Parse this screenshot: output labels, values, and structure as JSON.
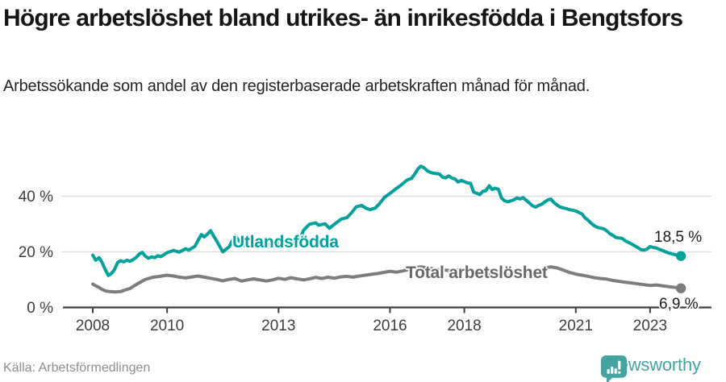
{
  "chart_data": {
    "type": "line",
    "title": "Högre arbetslöshet bland utrikes- än inrikesfödda i Bengtsfors",
    "subtitle": "Arbetssökande som andel av den registerbaserade arbetskraften månad för månad.",
    "source": "Källa: Arbetsförmedlingen",
    "x_tick_values": [
      2008,
      2010,
      2013,
      2016,
      2018,
      2021,
      2023
    ],
    "x_tick_labels": [
      "2008",
      "2010",
      "2013",
      "2016",
      "2018",
      "2021",
      "2023"
    ],
    "y_tick_values": [
      0,
      20,
      40
    ],
    "y_tick_labels": [
      "0 %",
      "20 %",
      "40 %"
    ],
    "xlim": [
      2008,
      2023.92
    ],
    "ylim": [
      0,
      55
    ],
    "grid": "horizontal",
    "legend": "inline-labels",
    "series": [
      {
        "name": "Utlandsfödda",
        "color": "#00a29b",
        "end_label": "18,5 %",
        "last_value": 18.5,
        "points": [
          [
            2008.0,
            18.8
          ],
          [
            2008.08,
            17.0
          ],
          [
            2008.17,
            17.9
          ],
          [
            2008.25,
            16.2
          ],
          [
            2008.33,
            13.8
          ],
          [
            2008.42,
            11.5
          ],
          [
            2008.5,
            12.2
          ],
          [
            2008.58,
            13.5
          ],
          [
            2008.67,
            16.2
          ],
          [
            2008.75,
            16.8
          ],
          [
            2008.83,
            16.4
          ],
          [
            2008.92,
            17.0
          ],
          [
            2009.0,
            16.6
          ],
          [
            2009.08,
            17.2
          ],
          [
            2009.17,
            18.0
          ],
          [
            2009.25,
            19.2
          ],
          [
            2009.33,
            19.8
          ],
          [
            2009.42,
            18.4
          ],
          [
            2009.5,
            17.7
          ],
          [
            2009.58,
            18.2
          ],
          [
            2009.67,
            17.9
          ],
          [
            2009.75,
            18.6
          ],
          [
            2009.83,
            18.3
          ],
          [
            2009.92,
            19.0
          ],
          [
            2010.0,
            19.7
          ],
          [
            2010.17,
            20.5
          ],
          [
            2010.33,
            19.9
          ],
          [
            2010.5,
            21.1
          ],
          [
            2010.58,
            20.6
          ],
          [
            2010.75,
            22.0
          ],
          [
            2010.83,
            24.0
          ],
          [
            2010.92,
            26.2
          ],
          [
            2011.0,
            25.4
          ],
          [
            2011.08,
            26.3
          ],
          [
            2011.17,
            27.6
          ],
          [
            2011.33,
            24.0
          ],
          [
            2011.5,
            20.0
          ],
          [
            2011.67,
            21.8
          ],
          [
            2011.83,
            25.9
          ],
          [
            2011.92,
            24.2
          ],
          [
            2012.08,
            22.3
          ],
          [
            2012.25,
            22.9
          ],
          [
            2012.42,
            22.3
          ],
          [
            2012.58,
            23.3
          ],
          [
            2012.75,
            22.6
          ],
          [
            2012.92,
            23.2
          ],
          [
            2013.08,
            22.7
          ],
          [
            2013.25,
            23.3
          ],
          [
            2013.42,
            23.8
          ],
          [
            2013.58,
            24.6
          ],
          [
            2013.67,
            27.7
          ],
          [
            2013.83,
            29.9
          ],
          [
            2014.0,
            30.4
          ],
          [
            2014.08,
            29.6
          ],
          [
            2014.25,
            30.1
          ],
          [
            2014.37,
            28.5
          ],
          [
            2014.55,
            30.4
          ],
          [
            2014.69,
            31.8
          ],
          [
            2014.84,
            32.3
          ],
          [
            2014.98,
            34.3
          ],
          [
            2015.09,
            36.2
          ],
          [
            2015.24,
            36.7
          ],
          [
            2015.35,
            35.7
          ],
          [
            2015.46,
            35.2
          ],
          [
            2015.6,
            35.7
          ],
          [
            2015.71,
            37.2
          ],
          [
            2015.85,
            39.6
          ],
          [
            2016.0,
            41.0
          ],
          [
            2016.14,
            42.5
          ],
          [
            2016.29,
            43.9
          ],
          [
            2016.47,
            45.9
          ],
          [
            2016.58,
            46.4
          ],
          [
            2016.67,
            48.1
          ],
          [
            2016.75,
            49.8
          ],
          [
            2016.83,
            50.8
          ],
          [
            2016.92,
            50.2
          ],
          [
            2017.0,
            49.2
          ],
          [
            2017.08,
            48.6
          ],
          [
            2017.17,
            48.3
          ],
          [
            2017.33,
            48.0
          ],
          [
            2017.42,
            46.8
          ],
          [
            2017.5,
            46.6
          ],
          [
            2017.58,
            47.3
          ],
          [
            2017.67,
            46.5
          ],
          [
            2017.75,
            46.2
          ],
          [
            2017.83,
            45.1
          ],
          [
            2017.92,
            45.7
          ],
          [
            2018.08,
            44.8
          ],
          [
            2018.17,
            44.6
          ],
          [
            2018.25,
            41.5
          ],
          [
            2018.42,
            40.6
          ],
          [
            2018.5,
            41.8
          ],
          [
            2018.58,
            42.0
          ],
          [
            2018.67,
            43.8
          ],
          [
            2018.75,
            42.4
          ],
          [
            2018.83,
            42.9
          ],
          [
            2018.92,
            42.5
          ],
          [
            2019.0,
            39.4
          ],
          [
            2019.08,
            38.4
          ],
          [
            2019.17,
            38.0
          ],
          [
            2019.33,
            38.7
          ],
          [
            2019.42,
            39.4
          ],
          [
            2019.5,
            39.0
          ],
          [
            2019.58,
            39.5
          ],
          [
            2019.75,
            37.6
          ],
          [
            2019.83,
            36.6
          ],
          [
            2019.92,
            36.1
          ],
          [
            2020.0,
            36.7
          ],
          [
            2020.08,
            37.1
          ],
          [
            2020.17,
            38.0
          ],
          [
            2020.25,
            38.7
          ],
          [
            2020.33,
            39.0
          ],
          [
            2020.42,
            37.6
          ],
          [
            2020.5,
            36.8
          ],
          [
            2020.58,
            36.1
          ],
          [
            2020.67,
            35.8
          ],
          [
            2020.75,
            35.5
          ],
          [
            2020.83,
            35.2
          ],
          [
            2020.92,
            35.0
          ],
          [
            2021.0,
            34.7
          ],
          [
            2021.08,
            34.2
          ],
          [
            2021.17,
            33.6
          ],
          [
            2021.25,
            32.2
          ],
          [
            2021.33,
            31.4
          ],
          [
            2021.42,
            30.2
          ],
          [
            2021.5,
            29.4
          ],
          [
            2021.58,
            28.8
          ],
          [
            2021.75,
            28.3
          ],
          [
            2021.83,
            27.6
          ],
          [
            2021.92,
            26.5
          ],
          [
            2022.0,
            25.9
          ],
          [
            2022.08,
            25.2
          ],
          [
            2022.17,
            25.0
          ],
          [
            2022.25,
            24.8
          ],
          [
            2022.33,
            24.0
          ],
          [
            2022.42,
            23.4
          ],
          [
            2022.5,
            22.8
          ],
          [
            2022.58,
            22.2
          ],
          [
            2022.67,
            21.5
          ],
          [
            2022.75,
            20.8
          ],
          [
            2022.83,
            20.6
          ],
          [
            2022.92,
            21.0
          ],
          [
            2023.0,
            21.9
          ],
          [
            2023.08,
            21.6
          ],
          [
            2023.17,
            21.4
          ],
          [
            2023.25,
            20.9
          ],
          [
            2023.33,
            20.5
          ],
          [
            2023.42,
            20.0
          ],
          [
            2023.5,
            19.6
          ],
          [
            2023.58,
            19.3
          ],
          [
            2023.67,
            19.0
          ],
          [
            2023.75,
            18.7
          ],
          [
            2023.83,
            18.5
          ]
        ]
      },
      {
        "name": "Total arbetslöshet",
        "color": "#7d7d7d",
        "end_label": "6,9 %",
        "last_value": 6.9,
        "points": [
          [
            2008.0,
            8.4
          ],
          [
            2008.08,
            7.8
          ],
          [
            2008.17,
            7.2
          ],
          [
            2008.25,
            6.5
          ],
          [
            2008.33,
            6.0
          ],
          [
            2008.45,
            5.7
          ],
          [
            2008.6,
            5.6
          ],
          [
            2008.75,
            5.7
          ],
          [
            2008.9,
            6.4
          ],
          [
            2009.0,
            6.8
          ],
          [
            2009.2,
            8.5
          ],
          [
            2009.4,
            10.0
          ],
          [
            2009.6,
            10.8
          ],
          [
            2009.8,
            11.2
          ],
          [
            2010.0,
            11.6
          ],
          [
            2010.17,
            11.3
          ],
          [
            2010.33,
            10.9
          ],
          [
            2010.5,
            10.6
          ],
          [
            2010.67,
            11.0
          ],
          [
            2010.83,
            11.3
          ],
          [
            2011.0,
            10.9
          ],
          [
            2011.17,
            10.5
          ],
          [
            2011.33,
            10.1
          ],
          [
            2011.5,
            9.6
          ],
          [
            2011.67,
            10.1
          ],
          [
            2011.83,
            10.4
          ],
          [
            2012.0,
            9.5
          ],
          [
            2012.17,
            9.9
          ],
          [
            2012.33,
            10.3
          ],
          [
            2012.5,
            9.9
          ],
          [
            2012.67,
            9.5
          ],
          [
            2012.83,
            9.9
          ],
          [
            2013.0,
            10.5
          ],
          [
            2013.17,
            10.1
          ],
          [
            2013.33,
            10.7
          ],
          [
            2013.5,
            10.3
          ],
          [
            2013.67,
            9.9
          ],
          [
            2013.83,
            10.3
          ],
          [
            2014.0,
            10.8
          ],
          [
            2014.17,
            10.4
          ],
          [
            2014.33,
            10.9
          ],
          [
            2014.5,
            10.5
          ],
          [
            2014.67,
            11.0
          ],
          [
            2014.83,
            11.2
          ],
          [
            2015.0,
            10.9
          ],
          [
            2015.17,
            11.3
          ],
          [
            2015.33,
            11.6
          ],
          [
            2015.5,
            11.9
          ],
          [
            2015.67,
            12.2
          ],
          [
            2015.83,
            12.6
          ],
          [
            2016.0,
            13.0
          ],
          [
            2016.17,
            12.7
          ],
          [
            2016.33,
            13.1
          ],
          [
            2016.5,
            13.6
          ],
          [
            2016.67,
            14.3
          ],
          [
            2016.83,
            14.6
          ],
          [
            2017.0,
            14.2
          ],
          [
            2017.17,
            13.9
          ],
          [
            2017.33,
            13.6
          ],
          [
            2017.5,
            13.4
          ],
          [
            2017.67,
            13.2
          ],
          [
            2017.83,
            13.5
          ],
          [
            2018.0,
            13.2
          ],
          [
            2018.17,
            12.9
          ],
          [
            2018.33,
            12.6
          ],
          [
            2018.5,
            12.4
          ],
          [
            2018.67,
            12.2
          ],
          [
            2018.83,
            12.0
          ],
          [
            2019.0,
            11.8
          ],
          [
            2019.17,
            11.6
          ],
          [
            2019.33,
            11.4
          ],
          [
            2019.5,
            11.6
          ],
          [
            2019.67,
            11.9
          ],
          [
            2019.83,
            12.4
          ],
          [
            2020.0,
            13.1
          ],
          [
            2020.17,
            14.1
          ],
          [
            2020.33,
            14.6
          ],
          [
            2020.5,
            14.2
          ],
          [
            2020.67,
            13.4
          ],
          [
            2020.83,
            12.6
          ],
          [
            2021.0,
            12.0
          ],
          [
            2021.17,
            11.6
          ],
          [
            2021.33,
            11.2
          ],
          [
            2021.5,
            10.7
          ],
          [
            2021.67,
            10.4
          ],
          [
            2021.83,
            10.2
          ],
          [
            2022.0,
            9.7
          ],
          [
            2022.17,
            9.4
          ],
          [
            2022.33,
            9.1
          ],
          [
            2022.5,
            8.8
          ],
          [
            2022.67,
            8.5
          ],
          [
            2022.83,
            8.2
          ],
          [
            2023.0,
            7.9
          ],
          [
            2023.17,
            8.1
          ],
          [
            2023.33,
            7.8
          ],
          [
            2023.5,
            7.5
          ],
          [
            2023.67,
            7.2
          ],
          [
            2023.83,
            6.9
          ]
        ]
      }
    ]
  },
  "footer": {
    "brand": "Newsworthy"
  },
  "colors": {
    "accent_teal": "#00a29b",
    "line_gray": "#7d7d7d",
    "label_gray": "#686868",
    "logo_teal": "#44a4a1",
    "grid": "#dcdcdc",
    "axis": "#3f3f3f",
    "tick_text": "#3d3d3d",
    "title_text": "#161616",
    "source_text": "#8e8e8e"
  }
}
